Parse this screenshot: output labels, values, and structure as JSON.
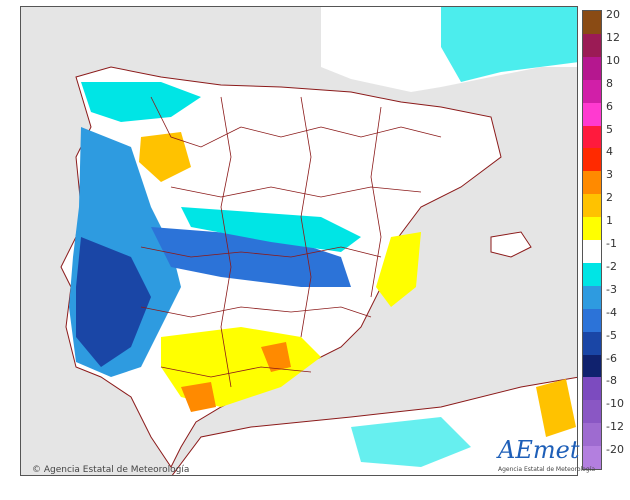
{
  "map": {
    "credit": "Agencia Estatal de Meteorología",
    "logo_brand": "AEmet",
    "logo_sub": "Agencia Estatal de Meteorología"
  },
  "legend": {
    "labels": [
      "20",
      "12",
      "10",
      "8",
      "6",
      "5",
      "4",
      "3",
      "2",
      "1",
      "-1",
      "-2",
      "-3",
      "-4",
      "-5",
      "-6",
      "-8",
      "-10",
      "-12",
      "-20"
    ],
    "colors": [
      "#8a4b14",
      "#9b1b55",
      "#b5178f",
      "#d11fa8",
      "#ff3ad0",
      "#ff1a3d",
      "#ff2a00",
      "#ff8a00",
      "#ffc200",
      "#ffff00",
      "#ffffff",
      "#00e5e5",
      "#2e9be0",
      "#2c73d8",
      "#1a46a6",
      "#10226e",
      "#7c4bbf",
      "#8a57c4",
      "#9e6bd0",
      "#b37fdf"
    ]
  }
}
